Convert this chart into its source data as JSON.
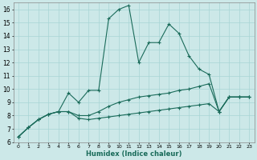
{
  "xlabel": "Humidex (Indice chaleur)",
  "xlim": [
    -0.5,
    23.5
  ],
  "ylim": [
    6,
    16.5
  ],
  "yticks": [
    6,
    7,
    8,
    9,
    10,
    11,
    12,
    13,
    14,
    15,
    16
  ],
  "xticks": [
    0,
    1,
    2,
    3,
    4,
    5,
    6,
    7,
    8,
    9,
    10,
    11,
    12,
    13,
    14,
    15,
    16,
    17,
    18,
    19,
    20,
    21,
    22,
    23
  ],
  "background_color": "#cce8e8",
  "line_color": "#1a6b5a",
  "grid_color": "#a8d5d5",
  "line1_x": [
    0,
    1,
    2,
    3,
    4,
    5,
    6,
    7,
    8,
    9,
    10,
    11,
    12,
    13,
    14,
    15,
    16,
    17,
    18,
    19,
    20,
    21,
    22,
    23
  ],
  "line1_y": [
    6.4,
    7.1,
    7.7,
    8.1,
    8.3,
    9.7,
    9.0,
    9.9,
    9.9,
    15.3,
    16.0,
    16.3,
    12.0,
    13.5,
    13.5,
    14.9,
    14.2,
    12.5,
    11.5,
    11.1,
    8.3,
    9.4,
    9.4,
    9.4
  ],
  "line2_x": [
    0,
    1,
    2,
    3,
    4,
    5,
    6,
    7,
    8,
    9,
    10,
    11,
    12,
    13,
    14,
    15,
    16,
    17,
    18,
    19,
    20,
    21,
    22,
    23
  ],
  "line2_y": [
    6.4,
    7.1,
    7.7,
    8.1,
    8.3,
    8.3,
    8.0,
    8.0,
    8.3,
    8.7,
    9.0,
    9.2,
    9.4,
    9.5,
    9.6,
    9.7,
    9.9,
    10.0,
    10.2,
    10.4,
    8.3,
    9.4,
    9.4,
    9.4
  ],
  "line3_x": [
    0,
    1,
    2,
    3,
    4,
    5,
    6,
    7,
    8,
    9,
    10,
    11,
    12,
    13,
    14,
    15,
    16,
    17,
    18,
    19,
    20,
    21,
    22,
    23
  ],
  "line3_y": [
    6.4,
    7.1,
    7.7,
    8.1,
    8.3,
    8.3,
    7.8,
    7.7,
    7.8,
    7.9,
    8.0,
    8.1,
    8.2,
    8.3,
    8.4,
    8.5,
    8.6,
    8.7,
    8.8,
    8.9,
    8.3,
    9.4,
    9.4,
    9.4
  ]
}
